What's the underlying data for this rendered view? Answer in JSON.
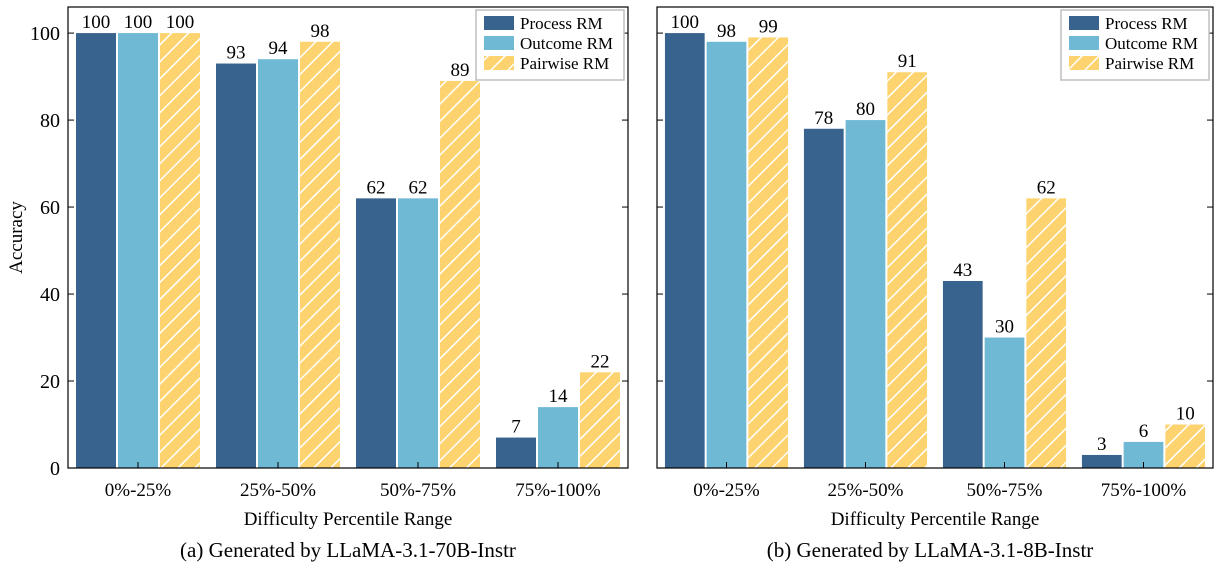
{
  "colors": {
    "process": "#38638f",
    "outcome": "#6fb9d5",
    "pairwise": "#fdd36f",
    "hatch": "#ffffff",
    "frame": "#000000"
  },
  "legend": {
    "placement": "top-right"
  },
  "captions": {
    "left": "(a) Generated by LLaMA-3.1-70B-Instr",
    "right": "(b) Generated by LLaMA-3.1-8B-Instr"
  },
  "chart_data": [
    {
      "type": "bar",
      "xlabel": "Difficulty Percentile Range",
      "ylabel": "Accuracy",
      "ylim": [
        0,
        106
      ],
      "yticks": [
        0,
        20,
        40,
        60,
        80,
        100
      ],
      "categories": [
        "0%-25%",
        "25%-50%",
        "50%-75%",
        "75%-100%"
      ],
      "series": [
        {
          "name": "Process RM",
          "values": [
            100,
            93,
            62,
            7
          ]
        },
        {
          "name": "Outcome RM",
          "values": [
            100,
            94,
            62,
            14
          ]
        },
        {
          "name": "Pairwise RM",
          "values": [
            100,
            98,
            89,
            22
          ]
        }
      ],
      "data_labels": [
        [
          "100",
          "93",
          "62",
          "7"
        ],
        [
          "100",
          "94",
          "62",
          "14"
        ],
        [
          "100",
          "98",
          "89",
          "22"
        ]
      ],
      "grid": false,
      "legend_placement": "top-right"
    },
    {
      "type": "bar",
      "xlabel": "Difficulty Percentile Range",
      "ylabel": "",
      "ylim": [
        0,
        106
      ],
      "yticks": [
        0,
        20,
        40,
        60,
        80,
        100
      ],
      "categories": [
        "0%-25%",
        "25%-50%",
        "50%-75%",
        "75%-100%"
      ],
      "series": [
        {
          "name": "Process RM",
          "values": [
            100,
            78,
            43,
            3
          ]
        },
        {
          "name": "Outcome RM",
          "values": [
            98,
            80,
            30,
            6
          ]
        },
        {
          "name": "Pairwise RM",
          "values": [
            99,
            91,
            62,
            10
          ]
        }
      ],
      "data_labels": [
        [
          "100",
          "78",
          "43",
          "3"
        ],
        [
          "98",
          "80",
          "30",
          "6"
        ],
        [
          "99",
          "91",
          "62",
          "10"
        ]
      ],
      "grid": false,
      "legend_placement": "top-right"
    }
  ]
}
